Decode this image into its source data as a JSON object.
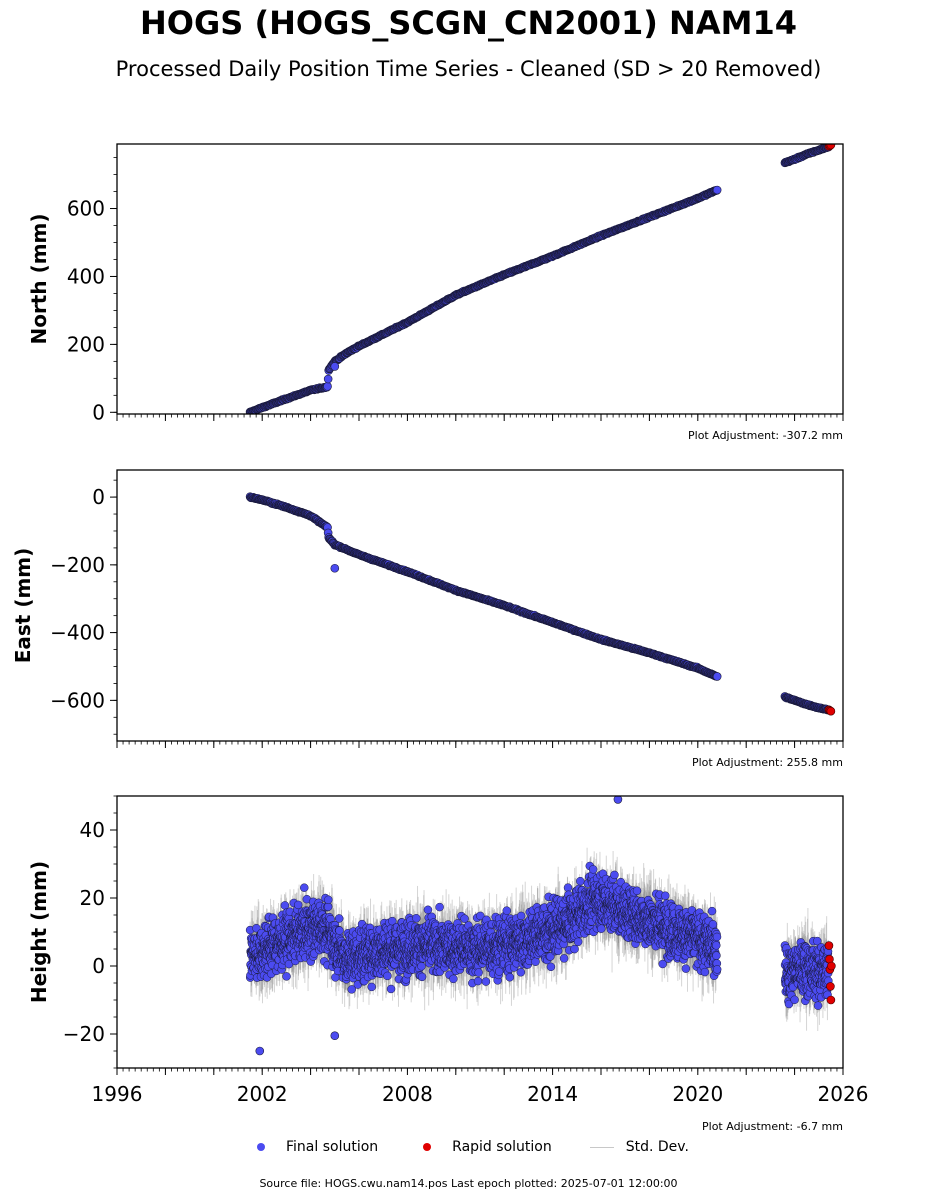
{
  "title": "HOGS (HOGS_SCGN_CN2001) NAM14",
  "subtitle": "Processed Daily Position Time Series - Cleaned (SD > 20 Removed)",
  "legend": {
    "final": "Final solution",
    "rapid": "Rapid solution",
    "std": "Std. Dev."
  },
  "source": "Source file: HOGS.cwu.nam14.pos  Last epoch plotted: 2025-07-01 12:00:00",
  "colors": {
    "final": "#4b4bf0",
    "rapid": "#e00000",
    "std": "#c8c8c8",
    "edge": "#1a1a3a"
  },
  "chart_data": [
    {
      "type": "scatter",
      "ylabel": "North (mm)",
      "adjustment": "Plot Adjustment: -307.2 mm",
      "xlim": [
        1996,
        2026
      ],
      "ylim": [
        -5,
        790
      ],
      "yticks": [
        0,
        200,
        400,
        600
      ],
      "xticks": [
        1996,
        2002,
        2008,
        2014,
        2020,
        2026
      ],
      "show_xtick_labels": false,
      "series": [
        {
          "kind": "final",
          "segments": [
            {
              "x": [
                2001.5,
                2002.0,
                2003.0,
                2004.0,
                2004.7,
                2004.75,
                2005.0,
                2005.5,
                2006.0,
                2008.0,
                2010.0,
                2012.0,
                2014.0,
                2016.0,
                2018.0,
                2020.0,
                2020.8
              ],
              "y": [
                0,
                14,
                40,
                65,
                75,
                125,
                150,
                175,
                195,
                265,
                345,
                405,
                460,
                520,
                575,
                630,
                655
              ]
            },
            {
              "x": [
                2023.6,
                2024.0,
                2024.5,
                2025.0,
                2025.4
              ],
              "y": [
                735,
                745,
                760,
                772,
                782
              ]
            }
          ]
        },
        {
          "kind": "rapid",
          "x": [
            2025.42,
            2025.46,
            2025.5
          ],
          "y": [
            783,
            785,
            787
          ]
        }
      ],
      "outliers": [
        {
          "x": 2005.0,
          "y": 135
        }
      ]
    },
    {
      "type": "scatter",
      "ylabel": "East (mm)",
      "adjustment": "Plot Adjustment: 255.8 mm",
      "xlim": [
        1996,
        2026
      ],
      "ylim": [
        -720,
        80
      ],
      "yticks": [
        0,
        -200,
        -400,
        -600
      ],
      "xticks": [
        1996,
        2002,
        2008,
        2014,
        2020,
        2026
      ],
      "show_xtick_labels": false,
      "series": [
        {
          "kind": "final",
          "segments": [
            {
              "x": [
                2001.5,
                2002.0,
                2003.0,
                2004.0,
                2004.7,
                2004.75,
                2005.0,
                2005.5,
                2006.0,
                2008.0,
                2010.0,
                2012.0,
                2014.0,
                2016.0,
                2018.0,
                2020.0,
                2020.8
              ],
              "y": [
                0,
                -8,
                -30,
                -55,
                -90,
                -120,
                -140,
                -155,
                -170,
                -220,
                -275,
                -320,
                -370,
                -420,
                -460,
                -505,
                -530
              ]
            },
            {
              "x": [
                2023.6,
                2024.0,
                2024.5,
                2025.0,
                2025.4
              ],
              "y": [
                -590,
                -600,
                -612,
                -622,
                -628
              ]
            }
          ]
        },
        {
          "kind": "rapid",
          "x": [
            2025.42,
            2025.46,
            2025.5
          ],
          "y": [
            -628,
            -630,
            -632
          ]
        }
      ],
      "outliers": [
        {
          "x": 2005.0,
          "y": -210
        }
      ]
    },
    {
      "type": "scatter",
      "ylabel": "Height (mm)",
      "adjustment": "Plot Adjustment: -6.7 mm",
      "xlim": [
        1996,
        2026
      ],
      "ylim": [
        -30,
        50
      ],
      "yticks": [
        -20,
        0,
        20,
        40
      ],
      "xticks": [
        1996,
        2002,
        2008,
        2014,
        2020,
        2026
      ],
      "xtick_labels": [
        "1996",
        "2002",
        "2008",
        "2014",
        "2020",
        "2026"
      ],
      "show_xtick_labels": true,
      "series": [
        {
          "kind": "final",
          "noisy": true,
          "spread": 6,
          "segments": [
            {
              "x": [
                2001.5,
                2003.0,
                2004.5,
                2005.5,
                2007.0,
                2009.0,
                2011.0,
                2013.0,
                2014.5,
                2015.8,
                2017.0,
                2018.5,
                2020.0,
                2020.8
              ],
              "y": [
                3,
                8,
                12,
                2,
                5,
                6,
                5,
                8,
                12,
                20,
                16,
                12,
                8,
                5
              ]
            },
            {
              "x": [
                2023.6,
                2024.3,
                2025.0,
                2025.4
              ],
              "y": [
                -3,
                0,
                -2,
                0
              ]
            }
          ]
        },
        {
          "kind": "rapid",
          "x": [
            2025.42,
            2025.44,
            2025.46,
            2025.48,
            2025.5,
            2025.52
          ],
          "y": [
            6,
            2,
            -1,
            -6,
            -10,
            0
          ]
        }
      ],
      "outliers": [
        {
          "x": 2016.7,
          "y": 49
        },
        {
          "x": 2001.9,
          "y": -25
        },
        {
          "x": 2005.0,
          "y": -20.5
        }
      ]
    }
  ]
}
